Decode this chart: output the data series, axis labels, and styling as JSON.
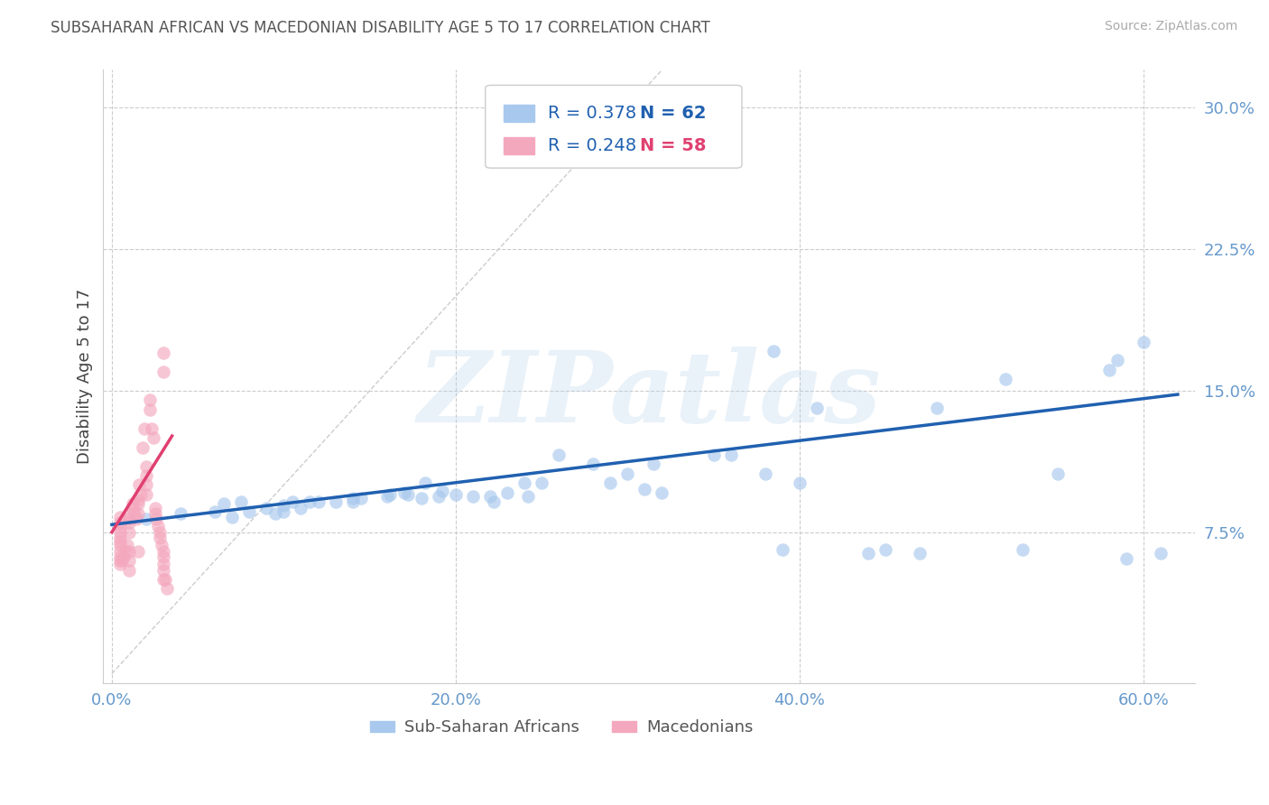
{
  "title": "SUBSAHARAN AFRICAN VS MACEDONIAN DISABILITY AGE 5 TO 17 CORRELATION CHART",
  "source": "Source: ZipAtlas.com",
  "ylabel": "Disability Age 5 to 17",
  "xlabel_ticks": [
    "0.0%",
    "20.0%",
    "40.0%",
    "60.0%"
  ],
  "xlabel_vals": [
    0.0,
    0.2,
    0.4,
    0.6
  ],
  "ylabel_ticks": [
    "7.5%",
    "15.0%",
    "22.5%",
    "30.0%"
  ],
  "ylabel_vals": [
    0.075,
    0.15,
    0.225,
    0.3
  ],
  "xlim": [
    -0.005,
    0.63
  ],
  "ylim": [
    -0.005,
    0.32
  ],
  "blue_color": "#a8c8ed",
  "pink_color": "#f4a8be",
  "blue_line_color": "#2060b0",
  "pink_line_color": "#e04070",
  "diagonal_color": "#cccccc",
  "legend_R1": "R = 0.378",
  "legend_N1": "N = 62",
  "legend_R2": "R = 0.248",
  "legend_N2": "N = 58",
  "watermark": "ZIPatlas",
  "blue_scatter_x": [
    0.26,
    0.02,
    0.04,
    0.06,
    0.065,
    0.07,
    0.075,
    0.08,
    0.09,
    0.095,
    0.1,
    0.1,
    0.105,
    0.11,
    0.115,
    0.12,
    0.13,
    0.14,
    0.14,
    0.145,
    0.16,
    0.162,
    0.17,
    0.172,
    0.18,
    0.182,
    0.19,
    0.192,
    0.2,
    0.21,
    0.22,
    0.222,
    0.23,
    0.24,
    0.242,
    0.25,
    0.26,
    0.28,
    0.29,
    0.3,
    0.31,
    0.315,
    0.32,
    0.35,
    0.36,
    0.38,
    0.385,
    0.39,
    0.4,
    0.41,
    0.44,
    0.45,
    0.47,
    0.48,
    0.52,
    0.53,
    0.55,
    0.58,
    0.585,
    0.59,
    0.6,
    0.61
  ],
  "blue_scatter_y": [
    0.285,
    0.082,
    0.085,
    0.086,
    0.09,
    0.083,
    0.091,
    0.086,
    0.088,
    0.085,
    0.086,
    0.089,
    0.091,
    0.088,
    0.091,
    0.091,
    0.091,
    0.091,
    0.093,
    0.093,
    0.094,
    0.095,
    0.096,
    0.095,
    0.093,
    0.101,
    0.094,
    0.097,
    0.095,
    0.094,
    0.094,
    0.091,
    0.096,
    0.101,
    0.094,
    0.101,
    0.116,
    0.111,
    0.101,
    0.106,
    0.098,
    0.111,
    0.096,
    0.116,
    0.116,
    0.106,
    0.171,
    0.066,
    0.101,
    0.141,
    0.064,
    0.066,
    0.064,
    0.141,
    0.156,
    0.066,
    0.106,
    0.161,
    0.166,
    0.061,
    0.176,
    0.064
  ],
  "pink_scatter_x": [
    0.005,
    0.005,
    0.005,
    0.005,
    0.005,
    0.005,
    0.005,
    0.005,
    0.005,
    0.005,
    0.005,
    0.006,
    0.007,
    0.008,
    0.009,
    0.01,
    0.01,
    0.01,
    0.01,
    0.01,
    0.01,
    0.01,
    0.012,
    0.012,
    0.013,
    0.014,
    0.015,
    0.015,
    0.015,
    0.015,
    0.016,
    0.017,
    0.018,
    0.019,
    0.02,
    0.02,
    0.02,
    0.02,
    0.022,
    0.022,
    0.023,
    0.024,
    0.025,
    0.025,
    0.026,
    0.027,
    0.028,
    0.028,
    0.029,
    0.03,
    0.03,
    0.03,
    0.03,
    0.03,
    0.03,
    0.03,
    0.031,
    0.032
  ],
  "pink_scatter_y": [
    0.083,
    0.08,
    0.078,
    0.075,
    0.072,
    0.07,
    0.068,
    0.065,
    0.062,
    0.06,
    0.058,
    0.06,
    0.062,
    0.065,
    0.068,
    0.085,
    0.082,
    0.08,
    0.075,
    0.065,
    0.06,
    0.055,
    0.09,
    0.088,
    0.085,
    0.082,
    0.092,
    0.09,
    0.085,
    0.065,
    0.1,
    0.095,
    0.12,
    0.13,
    0.11,
    0.105,
    0.1,
    0.095,
    0.145,
    0.14,
    0.13,
    0.125,
    0.088,
    0.085,
    0.082,
    0.078,
    0.075,
    0.072,
    0.068,
    0.065,
    0.062,
    0.058,
    0.17,
    0.16,
    0.055,
    0.05,
    0.05,
    0.045
  ],
  "blue_line_x": [
    0.0,
    0.62
  ],
  "blue_line_y": [
    0.079,
    0.148
  ],
  "pink_line_x": [
    0.0,
    0.035
  ],
  "pink_line_y": [
    0.075,
    0.126
  ],
  "diag_line_x": [
    0.0,
    0.32
  ],
  "diag_line_y": [
    0.0,
    0.32
  ],
  "background_color": "#ffffff",
  "grid_color": "#cccccc",
  "title_color": "#555555",
  "source_color": "#aaaaaa",
  "axis_tick_color": "#6699cc",
  "ylabel_color": "#444444"
}
